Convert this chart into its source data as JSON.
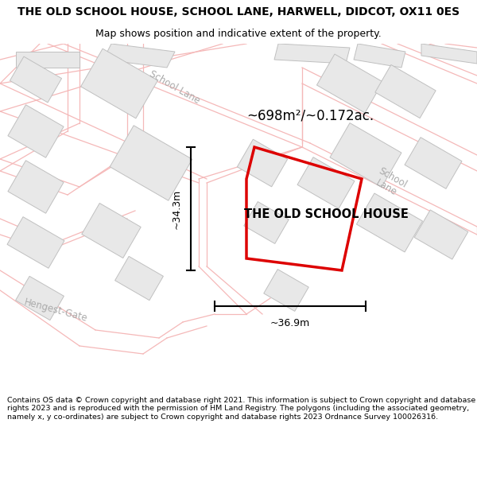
{
  "title": "THE OLD SCHOOL HOUSE, SCHOOL LANE, HARWELL, DIDCOT, OX11 0ES",
  "subtitle": "Map shows position and indicative extent of the property.",
  "footer": "Contains OS data © Crown copyright and database right 2021. This information is subject to Crown copyright and database rights 2023 and is reproduced with the permission of HM Land Registry. The polygons (including the associated geometry, namely x, y co-ordinates) are subject to Crown copyright and database rights 2023 Ordnance Survey 100026316.",
  "map_bg": "#ffffff",
  "road_line_color": "#f5b8b8",
  "building_fill": "#e8e8e8",
  "building_edge": "#c0c0c0",
  "red_color": "#dd0000",
  "property_label": "THE OLD SCHOOL HOUSE",
  "area_label": "~698m²/~0.172ac.",
  "dim_width": "~36.9m",
  "dim_height": "~34.3m",
  "school_lane_label1": "School Lane",
  "school_lane_label2": "School\nLane",
  "hengest_gate_label": "Hengest-Gate",
  "title_fontsize": 10,
  "subtitle_fontsize": 9,
  "footer_fontsize": 6.8
}
